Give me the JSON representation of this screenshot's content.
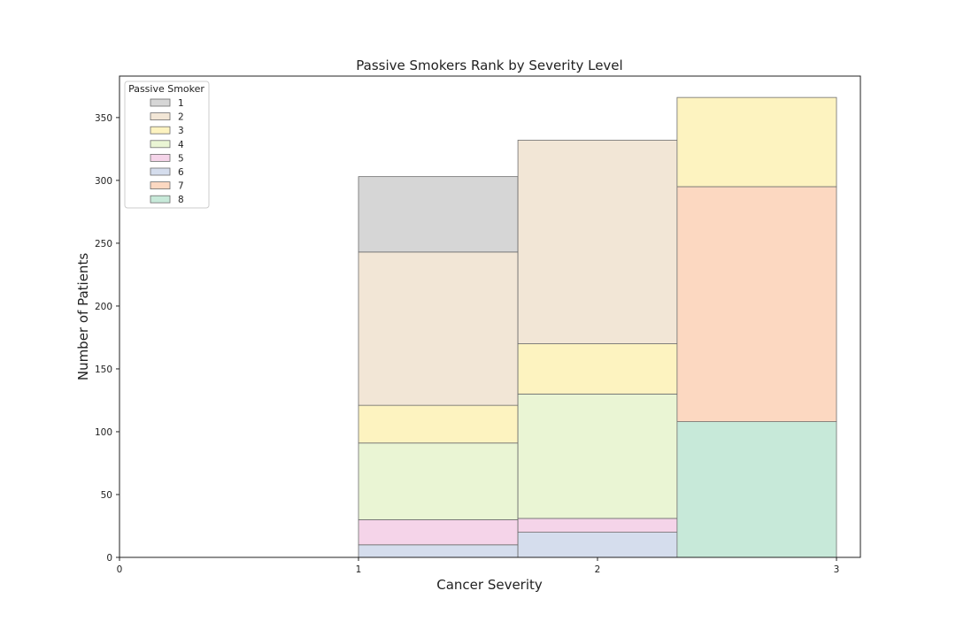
{
  "chart_data": {
    "type": "bar",
    "stacked": true,
    "title": "Passive Smokers Rank by Severity Level",
    "xlabel": "Cancer Severity",
    "ylabel": "Number of Patients",
    "xlim": [
      0,
      3.1
    ],
    "ylim": [
      0,
      383
    ],
    "x_ticks": [
      "0",
      "1",
      "2",
      "3"
    ],
    "y_ticks": [
      "0",
      "50",
      "100",
      "150",
      "200",
      "250",
      "300",
      "350"
    ],
    "bins": [
      {
        "start": 1.0,
        "end": 1.667
      },
      {
        "start": 1.667,
        "end": 2.333
      },
      {
        "start": 2.333,
        "end": 3.0
      }
    ],
    "legend_title": "Passive Smoker",
    "legend_position": "upper-left",
    "series": [
      {
        "name": "1",
        "color": "#d6d6d6",
        "values": [
          60,
          0,
          0
        ]
      },
      {
        "name": "2",
        "color": "#f2e6d6",
        "values": [
          122,
          162,
          0
        ]
      },
      {
        "name": "3",
        "color": "#fdf3c0",
        "values": [
          30,
          40,
          71
        ]
      },
      {
        "name": "4",
        "color": "#eaf5d4",
        "values": [
          61,
          99,
          0
        ]
      },
      {
        "name": "5",
        "color": "#f5d4e9",
        "values": [
          20,
          11,
          0
        ]
      },
      {
        "name": "6",
        "color": "#d5dded",
        "values": [
          10,
          20,
          0
        ]
      },
      {
        "name": "7",
        "color": "#fcd8c1",
        "values": [
          0,
          0,
          187
        ]
      },
      {
        "name": "8",
        "color": "#c7e9d9",
        "values": [
          0,
          0,
          108
        ]
      }
    ],
    "grid": false
  }
}
